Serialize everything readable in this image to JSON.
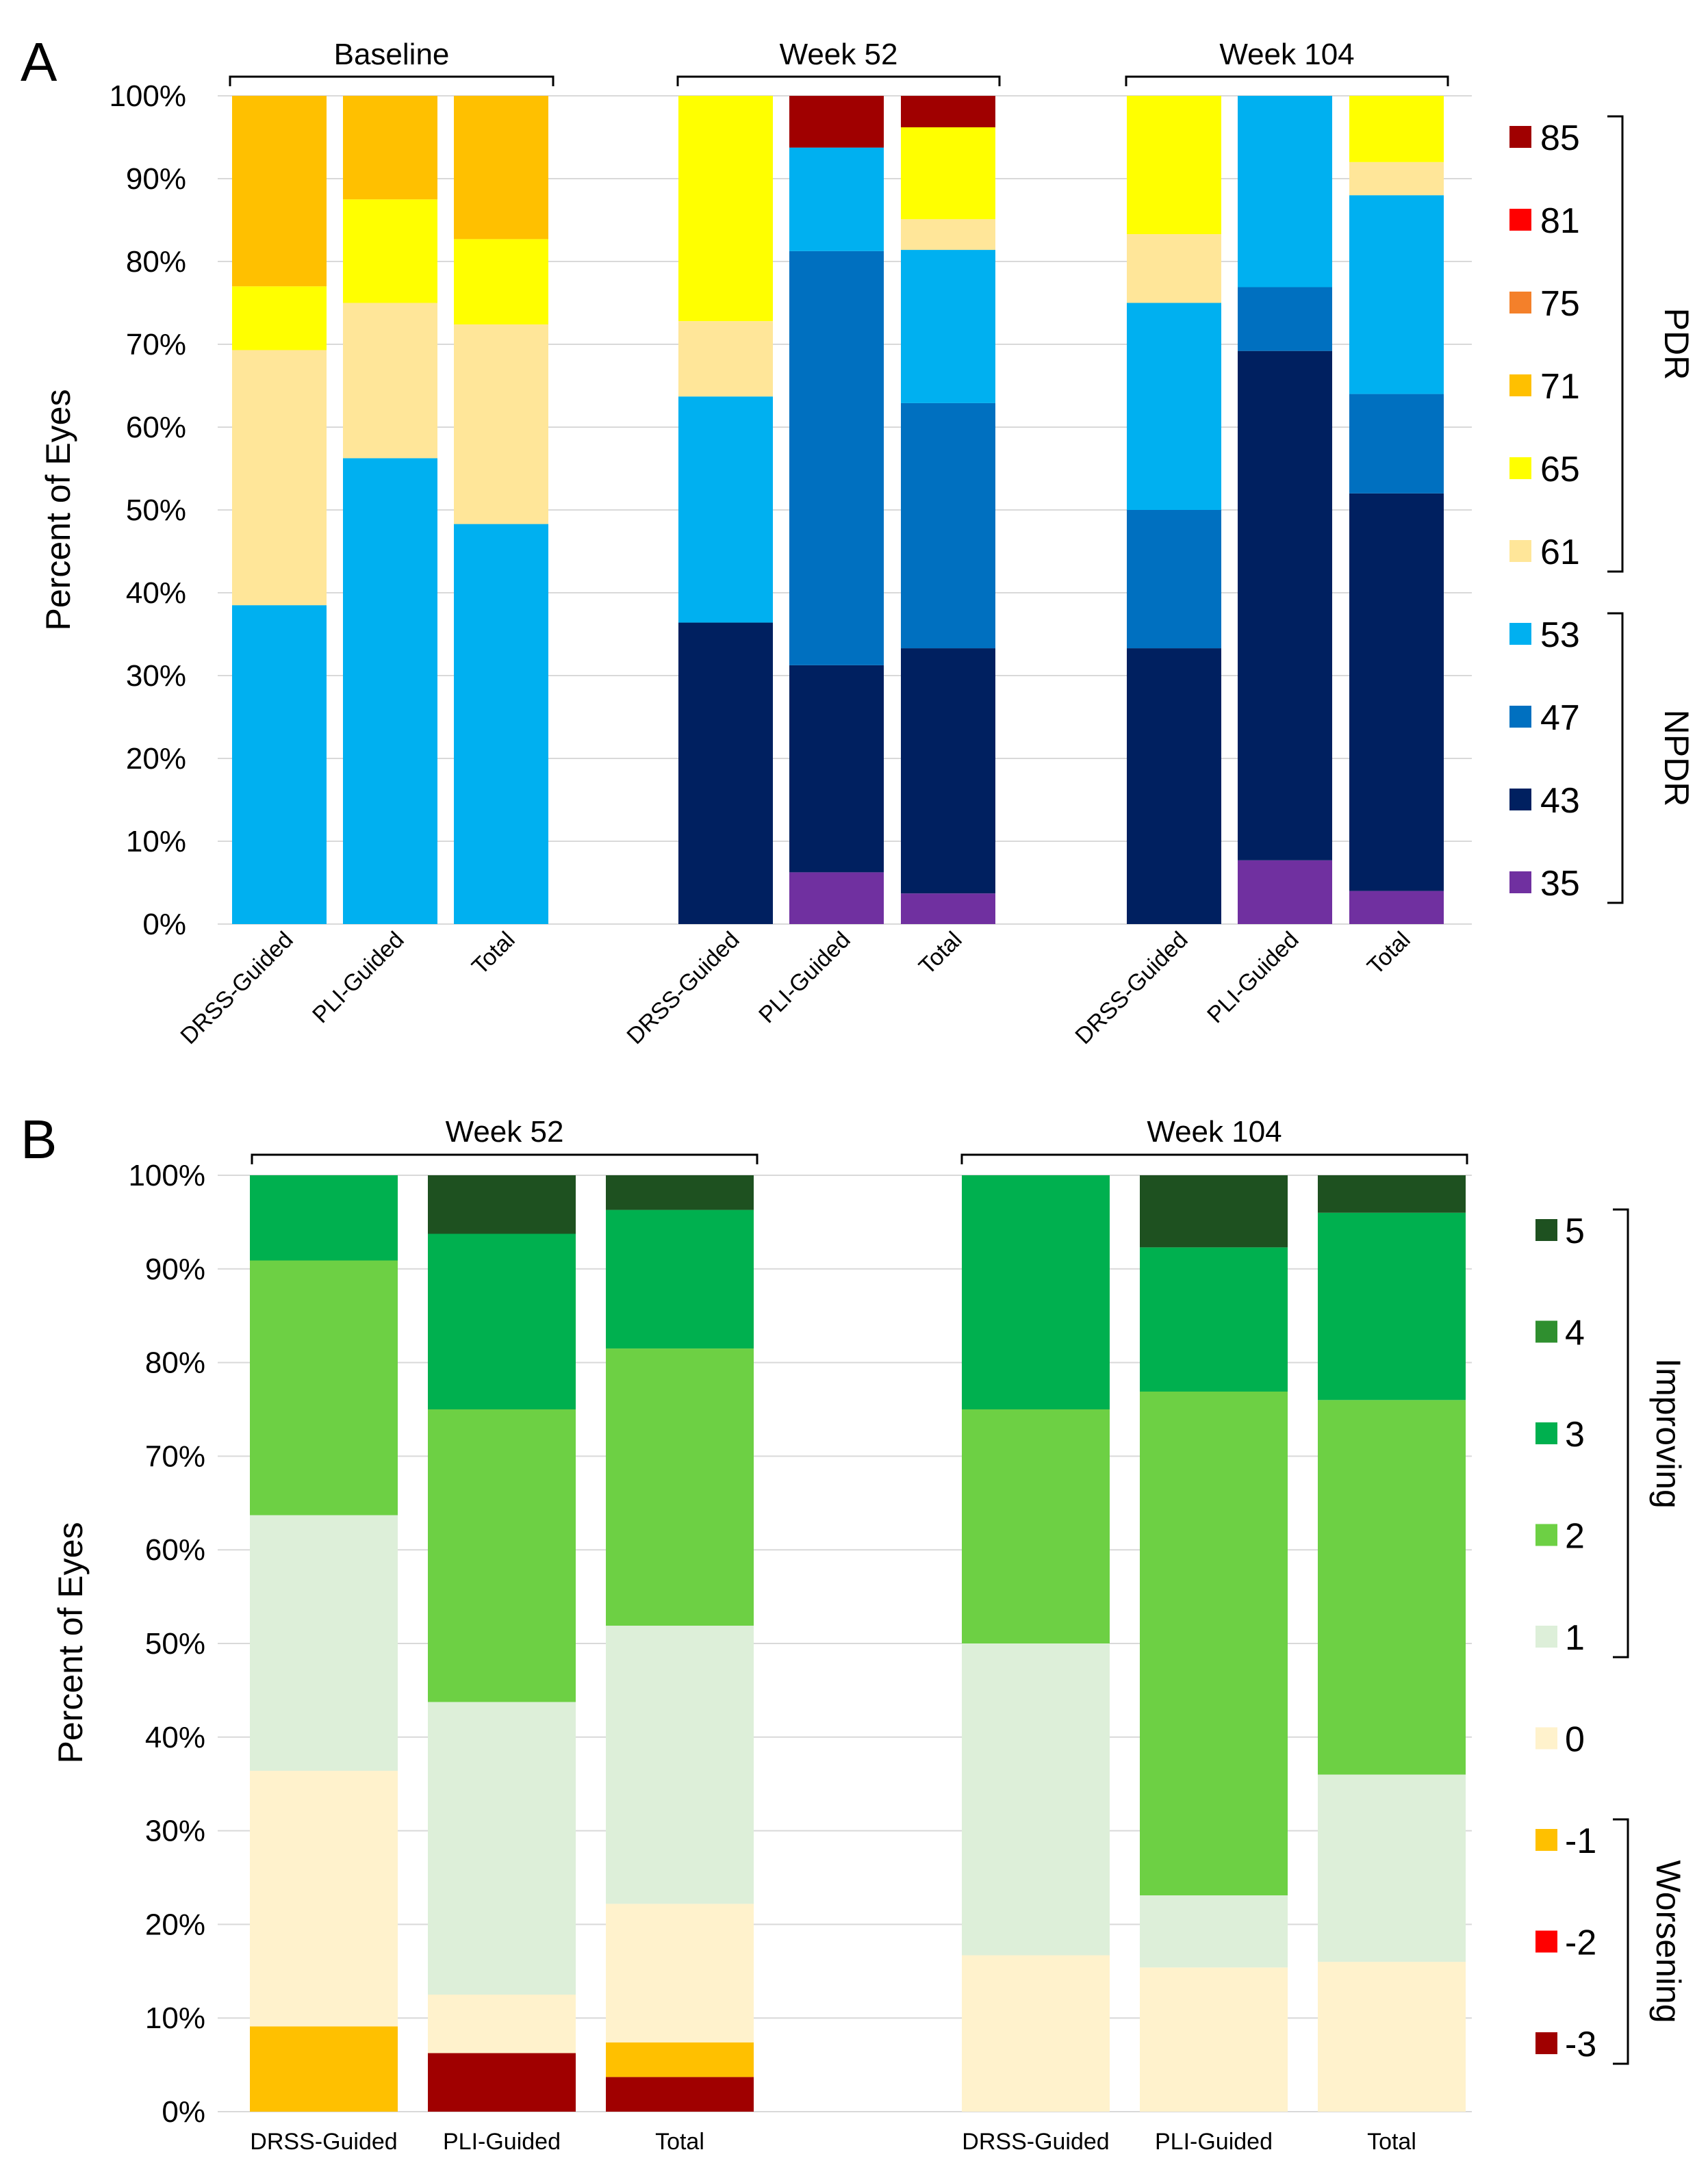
{
  "chart_data": [
    {
      "type": "bar",
      "stacked": true,
      "panel_label": "A",
      "ylabel": "Percent of Eyes",
      "ylim": [
        0,
        100
      ],
      "yticks": [
        "0%",
        "10%",
        "20%",
        "30%",
        "40%",
        "50%",
        "60%",
        "70%",
        "80%",
        "90%",
        "100%"
      ],
      "grid": true,
      "groups": [
        {
          "label": "Baseline",
          "categories": [
            "DRSS-Guided",
            "PLI-Guided",
            "Total"
          ]
        },
        {
          "label": "Week 52",
          "categories": [
            "DRSS-Guided",
            "PLI-Guided",
            "Total"
          ]
        },
        {
          "label": "Week 104",
          "categories": [
            "DRSS-Guided",
            "PLI-Guided",
            "Total"
          ]
        }
      ],
      "series": [
        {
          "name": "35",
          "color": "#7030A0",
          "values": [
            0,
            0,
            0,
            0,
            6.25,
            3.7,
            0,
            7.7,
            4
          ]
        },
        {
          "name": "43",
          "color": "#002060",
          "values": [
            0,
            0,
            0,
            36.4,
            25,
            29.6,
            33.3,
            61.5,
            48
          ]
        },
        {
          "name": "47",
          "color": "#0070C0",
          "values": [
            0,
            0,
            0,
            0,
            50,
            29.6,
            16.7,
            7.7,
            12
          ]
        },
        {
          "name": "53",
          "color": "#00B0F0",
          "values": [
            38.5,
            56.25,
            48.3,
            27.3,
            12.5,
            18.5,
            25,
            23.1,
            24
          ]
        },
        {
          "name": "61",
          "color": "#FFE699",
          "values": [
            30.8,
            18.75,
            24.1,
            9.1,
            0,
            3.7,
            8.3,
            0,
            4
          ]
        },
        {
          "name": "65",
          "color": "#FFFF00",
          "values": [
            7.7,
            12.5,
            10.3,
            27.2,
            0,
            11.1,
            16.7,
            0,
            8
          ]
        },
        {
          "name": "71",
          "color": "#FFC000",
          "values": [
            23,
            12.5,
            17.3,
            0,
            0,
            0,
            0,
            0,
            0
          ]
        },
        {
          "name": "75",
          "color": "#F4802A",
          "values": [
            0,
            0,
            0,
            0,
            0,
            0,
            0,
            0,
            0
          ]
        },
        {
          "name": "81",
          "color": "#FF0000",
          "values": [
            0,
            0,
            0,
            0,
            0,
            0,
            0,
            0,
            0
          ]
        },
        {
          "name": "85",
          "color": "#A00000",
          "values": [
            0,
            0,
            0,
            0,
            6.25,
            3.8,
            0,
            0,
            0
          ]
        }
      ],
      "legend_order": [
        "85",
        "81",
        "75",
        "71",
        "65",
        "61",
        "53",
        "47",
        "43",
        "35"
      ],
      "brackets": [
        {
          "label": "PDR",
          "from": "85",
          "to": "61"
        },
        {
          "label": "NPDR",
          "from": "53",
          "to": "35"
        }
      ]
    },
    {
      "type": "bar",
      "stacked": true,
      "panel_label": "B",
      "ylabel": "Percent of Eyes",
      "ylim": [
        0,
        100
      ],
      "yticks": [
        "0%",
        "10%",
        "20%",
        "30%",
        "40%",
        "50%",
        "60%",
        "70%",
        "80%",
        "90%",
        "100%"
      ],
      "grid": true,
      "groups": [
        {
          "label": "Week 52",
          "categories": [
            "DRSS-Guided",
            "PLI-Guided",
            "Total"
          ]
        },
        {
          "label": "Week 104",
          "categories": [
            "DRSS-Guided",
            "PLI-Guided",
            "Total"
          ]
        }
      ],
      "series": [
        {
          "name": "-3",
          "color": "#A00000",
          "values": [
            0,
            6.25,
            3.7,
            0,
            0,
            0
          ]
        },
        {
          "name": "-2",
          "color": "#FF0000",
          "values": [
            0,
            0,
            0,
            0,
            0,
            0
          ]
        },
        {
          "name": "-1",
          "color": "#FFC000",
          "values": [
            9.1,
            0,
            3.7,
            0,
            0,
            0
          ]
        },
        {
          "name": "0",
          "color": "#FFF2CC",
          "values": [
            27.3,
            6.25,
            14.8,
            16.7,
            15.4,
            16
          ]
        },
        {
          "name": "1",
          "color": "#DDEFD9",
          "values": [
            27.3,
            31.25,
            29.7,
            33.3,
            7.7,
            20
          ]
        },
        {
          "name": "2",
          "color": "#6DD044",
          "values": [
            27.2,
            31.25,
            29.6,
            25,
            53.8,
            40
          ]
        },
        {
          "name": "3",
          "color": "#00B04F",
          "values": [
            9.1,
            18.75,
            14.8,
            25,
            15.4,
            20
          ]
        },
        {
          "name": "4",
          "color": "#2F8F2F",
          "values": [
            0,
            0,
            0,
            0,
            0,
            0
          ]
        },
        {
          "name": "5",
          "color": "#1E5120",
          "values": [
            0,
            6.25,
            3.7,
            0,
            7.7,
            4
          ]
        }
      ],
      "legend_order": [
        "5",
        "4",
        "3",
        "2",
        "1",
        "0",
        "-1",
        "-2",
        "-3"
      ],
      "brackets": [
        {
          "label": "Improving",
          "from": "5",
          "to": "1"
        },
        {
          "label": "Worsening",
          "from": "-1",
          "to": "-3"
        }
      ]
    }
  ]
}
